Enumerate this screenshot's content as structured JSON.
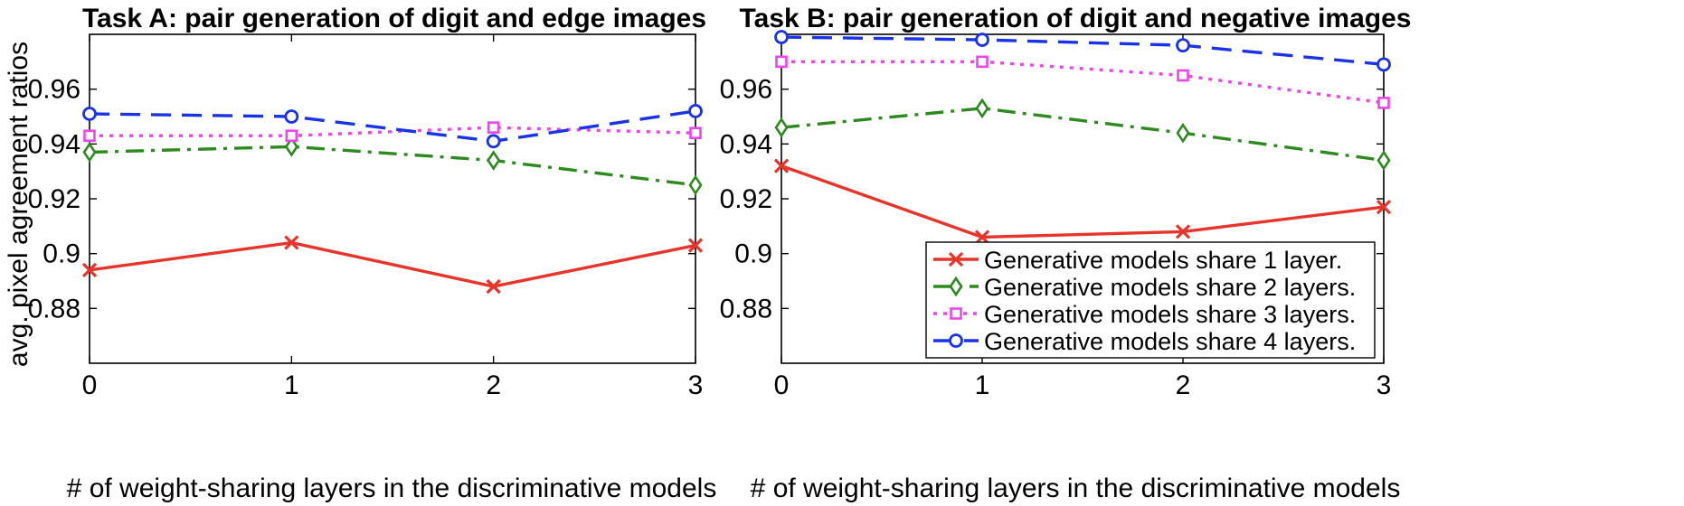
{
  "chart_data": [
    {
      "type": "line",
      "title": "Task A: pair generation of digit and edge images",
      "xlabel": "# of weight-sharing layers in the discriminative models",
      "ylabel": "avg. pixel agreement ratios",
      "x": [
        0,
        1,
        2,
        3
      ],
      "xticks": [
        "0",
        "1",
        "2",
        "3"
      ],
      "yticks": [
        "0.88",
        "0.9",
        "0.92",
        "0.94",
        "0.96"
      ],
      "ytick_values": [
        0.88,
        0.9,
        0.92,
        0.94,
        0.96
      ],
      "xlim": [
        0,
        3
      ],
      "ylim": [
        0.86,
        0.98
      ],
      "series": [
        {
          "name": "Generative models share 1 layer.",
          "values": [
            0.894,
            0.904,
            0.888,
            0.903
          ],
          "color": "#e8352b",
          "marker": "x",
          "dash": "solid"
        },
        {
          "name": "Generative models share 2 layers.",
          "values": [
            0.937,
            0.939,
            0.934,
            0.925
          ],
          "color": "#2d8a1f",
          "marker": "diamond",
          "dash": "dashdot"
        },
        {
          "name": "Generative models share 3 layers.",
          "values": [
            0.943,
            0.943,
            0.946,
            0.944
          ],
          "color": "#ee44ee",
          "marker": "square",
          "dash": "dotted"
        },
        {
          "name": "Generative models share 4 layers.",
          "values": [
            0.951,
            0.95,
            0.941,
            0.952
          ],
          "color": "#1a33e6",
          "marker": "circle",
          "dash": "dashed"
        }
      ],
      "legend": false
    },
    {
      "type": "line",
      "title": "Task B: pair generation of digit and negative images",
      "xlabel": "# of weight-sharing layers in the discriminative models",
      "ylabel": "",
      "x": [
        0,
        1,
        2,
        3
      ],
      "xticks": [
        "0",
        "1",
        "2",
        "3"
      ],
      "yticks": [
        "0.88",
        "0.9",
        "0.92",
        "0.94",
        "0.96"
      ],
      "ytick_values": [
        0.88,
        0.9,
        0.92,
        0.94,
        0.96
      ],
      "xlim": [
        0,
        3
      ],
      "ylim": [
        0.86,
        0.98
      ],
      "series": [
        {
          "name": "Generative models share 1 layer.",
          "values": [
            0.932,
            0.906,
            0.908,
            0.917
          ],
          "color": "#e8352b",
          "marker": "x",
          "dash": "solid"
        },
        {
          "name": "Generative models share 2 layers.",
          "values": [
            0.946,
            0.953,
            0.944,
            0.934
          ],
          "color": "#2d8a1f",
          "marker": "diamond",
          "dash": "dashdot"
        },
        {
          "name": "Generative models share 3 layers.",
          "values": [
            0.97,
            0.97,
            0.965,
            0.955
          ],
          "color": "#ee44ee",
          "marker": "square",
          "dash": "dotted"
        },
        {
          "name": "Generative models share 4 layers.",
          "values": [
            0.979,
            0.978,
            0.976,
            0.969
          ],
          "color": "#1a33e6",
          "marker": "circle",
          "dash": "dashed"
        }
      ],
      "legend": true,
      "legend_position": "bottom-right"
    }
  ]
}
